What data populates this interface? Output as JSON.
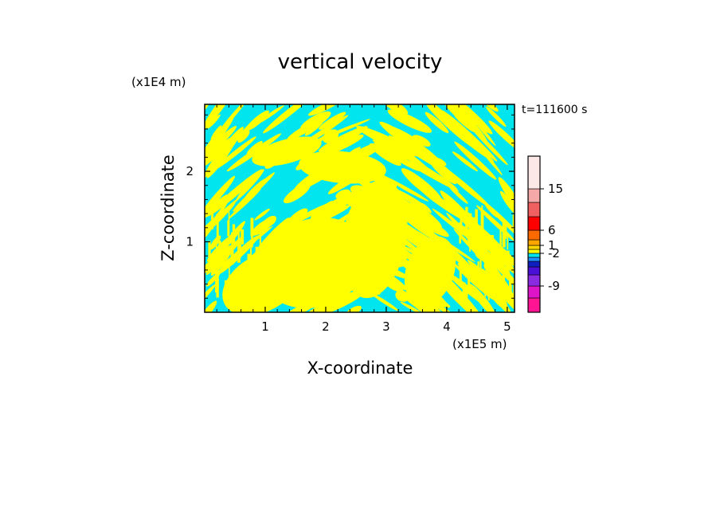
{
  "chart_data": {
    "type": "heatmap",
    "title": "vertical velocity",
    "xlabel": "X-coordinate",
    "ylabel": "Z-coordinate",
    "x_unit_label": "(x1E5 m)",
    "y_unit_label": "(x1E4 m)",
    "time_label": "t=111600  s",
    "xlim": [
      0,
      5.12
    ],
    "ylim": [
      0,
      2.95
    ],
    "x_ticks": [
      1,
      2,
      3,
      4,
      5
    ],
    "y_ticks": [
      1,
      2
    ],
    "x_tick_labels": [
      "1",
      "2",
      "3",
      "4",
      "5"
    ],
    "y_tick_labels": [
      "1",
      "2"
    ],
    "field_colors": {
      "positive": "#ffff00",
      "negative": "#00e5ee"
    },
    "colorbar": {
      "levels": [
        {
          "color": "#ff1493"
        },
        {
          "color": "#dd14c8"
        },
        {
          "color": "#8a2be2"
        },
        {
          "color": "#4b10d8"
        },
        {
          "color": "#1020c0"
        },
        {
          "color": "#1e90ff"
        },
        {
          "color": "#00e5ee"
        },
        {
          "color": "#ffff00"
        },
        {
          "color": "#ffd700"
        },
        {
          "color": "#ffa500"
        },
        {
          "color": "#ff6a00"
        },
        {
          "color": "#ff0000"
        },
        {
          "color": "#f06060"
        },
        {
          "color": "#f4a8a8"
        },
        {
          "color": "#fde8e8"
        }
      ],
      "tick_labels": [
        "-9",
        "-2",
        "1",
        "6",
        "15"
      ]
    }
  }
}
